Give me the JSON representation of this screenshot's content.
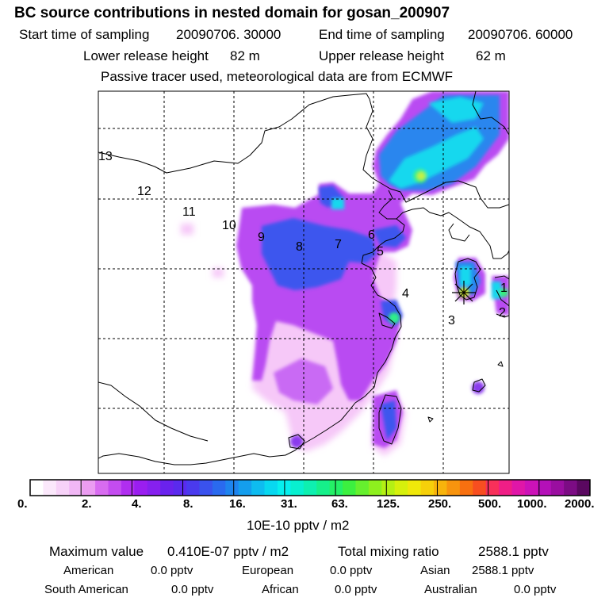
{
  "header": {
    "title": "BC  source contributions in nested domain for gosan_200907",
    "start_label": "Start time of sampling",
    "start_value": "20090706. 30000",
    "end_label": "End time of sampling",
    "end_value": "20090706. 60000",
    "lower_label": "Lower release height",
    "lower_value": "82 m",
    "upper_label": "Upper release height",
    "upper_value": "62 m",
    "note": "Passive tracer used, meteorological data are from ECMWF"
  },
  "map": {
    "site_labels": [
      "1",
      "2",
      "3",
      "4",
      "5",
      "6",
      "7",
      "8",
      "9",
      "10",
      "11",
      "12",
      "13"
    ],
    "receptor_marker": "star-icon",
    "colors": {
      "plume_low": "#f6c8f8",
      "plume_mid": "#9a2bf2",
      "plume_blue": "#3a5ef0",
      "plume_cyan": "#16f0e0",
      "plume_green": "#34f07a",
      "plume_yellow": "#e8f53a",
      "coastline": "#000000"
    }
  },
  "colorbar": {
    "ticks": [
      "0.",
      "2.",
      "4.",
      "8.",
      "16.",
      "31.",
      "63.",
      "125.",
      "250.",
      "500.",
      "1000.",
      "2000."
    ],
    "unit": "10E-10 pptv / m2",
    "colors": [
      "#ffffff",
      "#fbe8fb",
      "#f7d2f8",
      "#f1b7f5",
      "#eb9cf1",
      "#d86cf0",
      "#c44cf0",
      "#b02ef0",
      "#9a1ef0",
      "#8620ef",
      "#6a22ee",
      "#5a2aee",
      "#4a3aee",
      "#3a52ee",
      "#2a6aef",
      "#1e84ee",
      "#149eee",
      "#0ebcf0",
      "#08d8f0",
      "#06f0ee",
      "#08f0d0",
      "#0ef0b0",
      "#16f08a",
      "#24f066",
      "#3cf040",
      "#66f02e",
      "#8ef01e",
      "#b4f014",
      "#d6f00c",
      "#f0e80a",
      "#f6d00a",
      "#f8b40c",
      "#f8940e",
      "#f87010",
      "#f84e20",
      "#f8305a",
      "#f01e86",
      "#e016a8",
      "#cc12b8",
      "#b410b8",
      "#9a0ea0",
      "#7c0c84",
      "#5a0860"
    ]
  },
  "stats": {
    "max_label": "Maximum value",
    "max_value": "0.410E-07 pptv / m2",
    "total_label": "Total mixing ratio",
    "total_value": "2588.1 pptv",
    "regions": [
      {
        "name": "American",
        "value": "0.0 pptv"
      },
      {
        "name": "European",
        "value": "0.0 pptv"
      },
      {
        "name": "Asian",
        "value": "2588.1 pptv"
      },
      {
        "name": "South American",
        "value": "0.0 pptv"
      },
      {
        "name": "African",
        "value": "0.0 pptv"
      },
      {
        "name": "Australian",
        "value": "0.0 pptv"
      }
    ]
  }
}
